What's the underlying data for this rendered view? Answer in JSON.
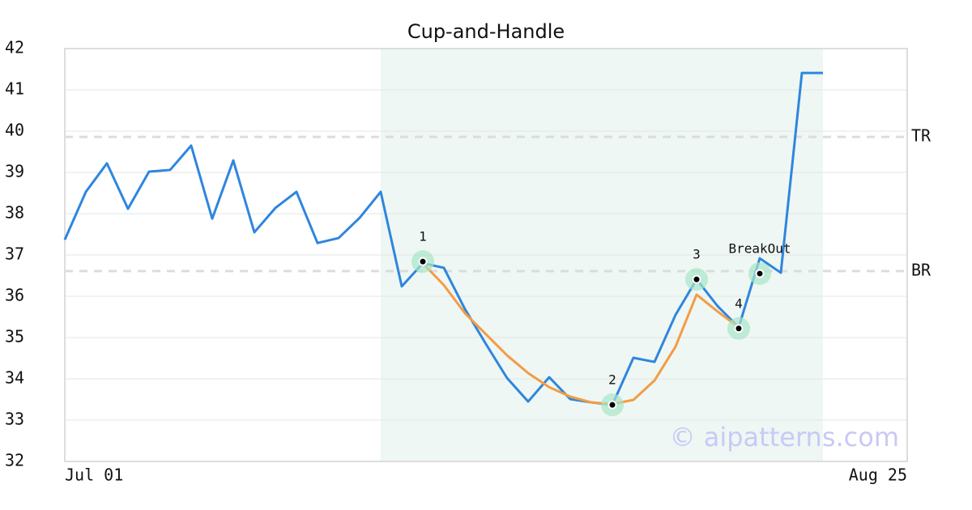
{
  "chart_data": {
    "type": "line",
    "title": "Cup-and-Handle",
    "x": [
      0,
      1,
      2,
      3,
      4,
      5,
      6,
      7,
      8,
      9,
      10,
      11,
      12,
      13,
      14,
      15,
      16,
      17,
      18,
      19,
      20,
      21,
      22,
      23,
      24,
      25,
      26,
      27,
      28,
      29,
      30,
      31,
      32,
      33,
      34,
      35,
      36
    ],
    "series": [
      {
        "color": "#2e86de",
        "values": [
          37.37,
          38.53,
          39.22,
          38.12,
          39.02,
          39.06,
          39.65,
          37.88,
          39.29,
          37.55,
          38.14,
          38.53,
          37.29,
          37.41,
          37.9,
          38.53,
          36.24,
          36.8,
          36.69,
          35.69,
          34.84,
          34.02,
          33.45,
          34.04,
          33.51,
          33.43,
          33.37,
          34.51,
          34.41,
          35.55,
          36.41,
          35.76,
          35.25,
          36.92,
          36.57,
          41.41,
          41.41
        ]
      },
      {
        "color": "#f39c45",
        "values": [
          null,
          null,
          null,
          null,
          null,
          null,
          null,
          null,
          null,
          null,
          null,
          null,
          null,
          null,
          null,
          null,
          null,
          36.8,
          36.27,
          35.59,
          35.08,
          34.57,
          34.14,
          33.8,
          33.57,
          33.43,
          33.39,
          33.49,
          33.96,
          34.78,
          36.04,
          35.63,
          35.25,
          null,
          null,
          null,
          null
        ]
      }
    ],
    "markers": [
      {
        "label": "1",
        "x": 17,
        "y": 36.84
      },
      {
        "label": "2",
        "x": 26,
        "y": 33.37
      },
      {
        "label": "3",
        "x": 30,
        "y": 36.41
      },
      {
        "label": "4",
        "x": 32,
        "y": 35.22
      },
      {
        "label": "BreakOut",
        "x": 33,
        "y": 36.55
      }
    ],
    "levels": [
      {
        "label": "TR",
        "value": 39.86
      },
      {
        "label": "BR",
        "value": 36.61
      }
    ],
    "highlight_x": [
      15,
      36
    ],
    "xlim": [
      0,
      40
    ],
    "xticks": [
      {
        "value": 0,
        "label": "Jul 01"
      },
      {
        "value": 40,
        "label": "Aug 25"
      }
    ],
    "ylim": [
      32,
      42
    ],
    "yticks": [
      32,
      33,
      34,
      35,
      36,
      37,
      38,
      39,
      40,
      41,
      42
    ],
    "grid": true,
    "watermark": "© aipatterns.com"
  }
}
